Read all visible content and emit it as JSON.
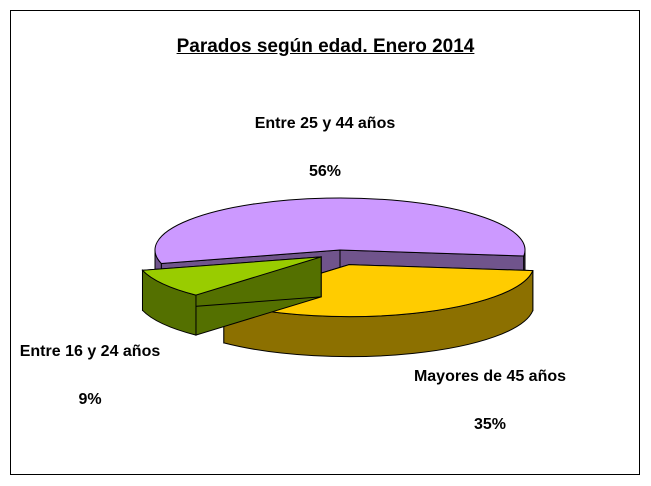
{
  "chart_data": {
    "type": "pie3d",
    "title": "Parados según edad. Enero 2014",
    "categories": [
      "Entre 25 y 44 años",
      "Mayores de 45 años",
      "Entre 16 y 24 años"
    ],
    "values": [
      56,
      35,
      9
    ],
    "value_labels": [
      "56%",
      "35%",
      "9%"
    ],
    "colors": [
      "#cc99ff",
      "#ffcc00",
      "#99cc00"
    ]
  }
}
